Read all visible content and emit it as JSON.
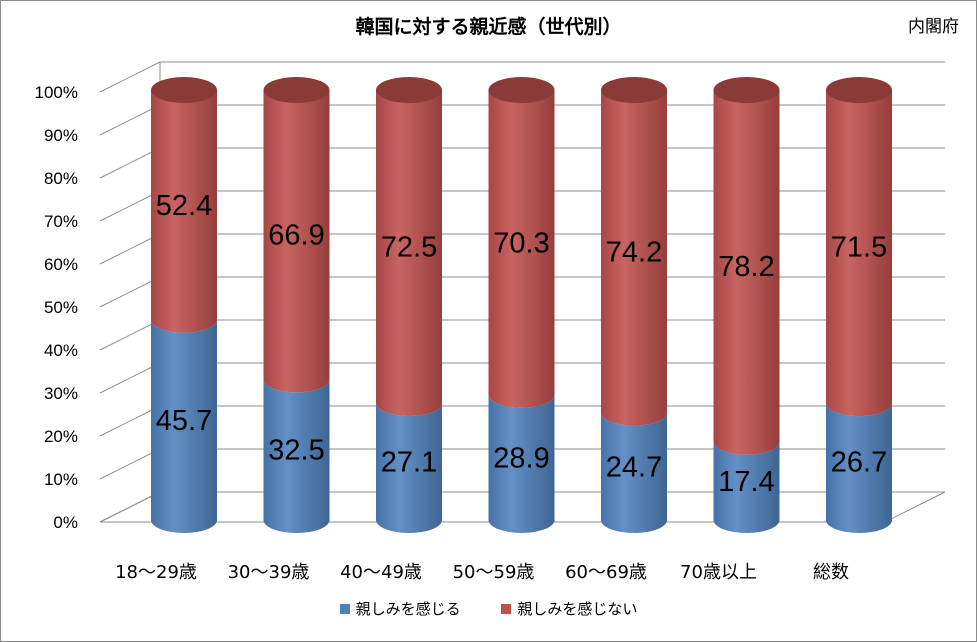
{
  "header": {
    "title": "韓国に対する親近感（世代別）",
    "source": "内閣府"
  },
  "colors": {
    "series1": "#4f81bd",
    "series2": "#c0504d"
  },
  "legend": {
    "items": [
      "親しみを感じる",
      "親しみを感じない"
    ]
  },
  "chart_data": {
    "type": "bar",
    "stacked": true,
    "percent_stacked": true,
    "style": "3d-cylinder",
    "title": "韓国に対する親近感（世代別）",
    "categories": [
      "18～29歳",
      "30～39歳",
      "40～49歳",
      "50～59歳",
      "60～69歳",
      "70歳以上",
      "総数"
    ],
    "series": [
      {
        "name": "親しみを感じる",
        "values": [
          45.7,
          32.5,
          27.1,
          28.9,
          24.7,
          17.4,
          26.7
        ]
      },
      {
        "name": "親しみを感じない",
        "values": [
          52.4,
          66.9,
          72.5,
          70.3,
          74.2,
          78.2,
          71.5
        ]
      }
    ],
    "yticks": [
      "0%",
      "10%",
      "20%",
      "30%",
      "40%",
      "50%",
      "60%",
      "70%",
      "80%",
      "90%",
      "100%"
    ],
    "ylim": [
      0,
      100
    ],
    "grid": true,
    "legend_position": "bottom"
  }
}
